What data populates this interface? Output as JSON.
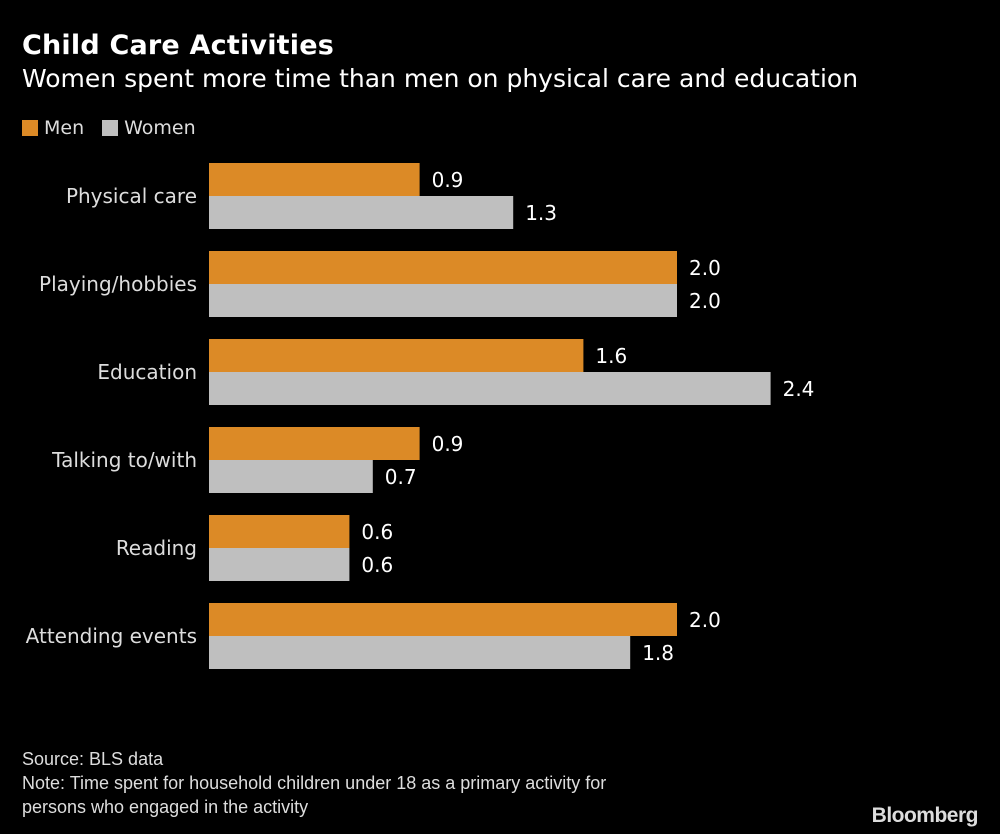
{
  "header": {
    "title": "Child Care Activities",
    "subtitle": "Women spent more time than men on physical care and education"
  },
  "legend": [
    {
      "label": "Men",
      "color": "#dc8a26"
    },
    {
      "label": "Women",
      "color": "#bfbfbf"
    }
  ],
  "footer": {
    "source": "Source: BLS data",
    "note_line1": "Note: Time spent for household children under 18 as a primary activity for",
    "note_line2": "persons who engaged in the activity",
    "brand": "Bloomberg"
  },
  "chart_data": {
    "type": "bar",
    "orientation": "horizontal",
    "title": "Child Care Activities",
    "subtitle": "Women spent more time than men on physical care and education",
    "categories": [
      "Physical care",
      "Playing/hobbies",
      "Education",
      "Talking to/with",
      "Reading",
      "Attending events"
    ],
    "series": [
      {
        "name": "Men",
        "color": "#dc8a26",
        "values": [
          0.9,
          2.0,
          1.6,
          0.9,
          0.6,
          2.0
        ],
        "labels": [
          "0.9",
          "2.0",
          "1.6",
          "0.9",
          "0.6",
          "2.0"
        ]
      },
      {
        "name": "Women",
        "color": "#bfbfbf",
        "values": [
          1.3,
          2.0,
          2.4,
          0.7,
          0.6,
          1.8
        ],
        "labels": [
          "1.3",
          "2.0",
          "2.4",
          "0.7",
          "0.6",
          "1.8"
        ]
      }
    ],
    "xlabel": "",
    "ylabel": "",
    "xlim": [
      0,
      2.4
    ],
    "grid": false,
    "legend_position": "top-left",
    "data_labels": true
  }
}
